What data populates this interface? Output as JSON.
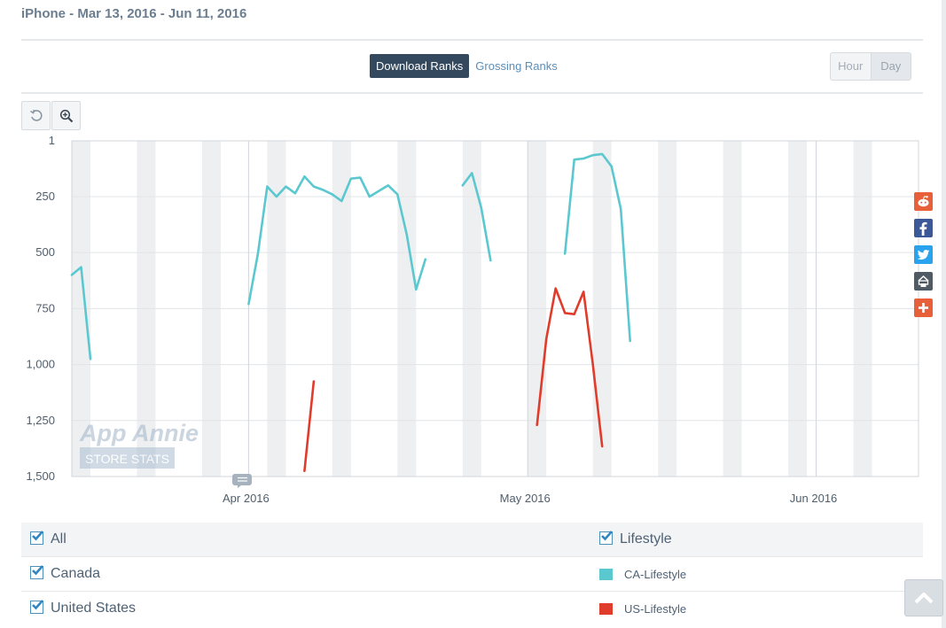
{
  "header": {
    "title": "iPhone - Mar 13, 2016 - Jun 11, 2016"
  },
  "tabs": {
    "download_ranks": "Download Ranks",
    "grossing_ranks": "Grossing Ranks"
  },
  "granularity": {
    "hour": "Hour",
    "day": "Day"
  },
  "toolbar": {
    "reset_icon": "reset-zoom-icon",
    "zoom_icon": "zoom-in-icon"
  },
  "watermark": {
    "line1": "App Annie",
    "line2": "STORE STATS"
  },
  "chart_data": {
    "type": "line",
    "x_unit": "days since Mar 13, 2016",
    "x_range": [
      0,
      91
    ],
    "ylim": [
      1,
      1500
    ],
    "y_reversed": true,
    "yticks": [
      1,
      250,
      500,
      750,
      1000,
      1250,
      1500
    ],
    "ytick_labels": [
      "1",
      "250",
      "500",
      "750",
      "1,000",
      "1,250",
      "1,500"
    ],
    "xtick_labels": [
      {
        "label": "Apr 2016",
        "day": 19
      },
      {
        "label": "May 2016",
        "day": 49
      },
      {
        "label": "Jun 2016",
        "day": 80
      }
    ],
    "grid": true,
    "series": [
      {
        "name": "CA-Lifestyle",
        "color": "#5bc8d0",
        "segments": [
          [
            [
              0,
              600
            ],
            [
              1,
              565
            ],
            [
              2,
              975
            ]
          ],
          [
            [
              19,
              730
            ],
            [
              20,
              505
            ],
            [
              21,
              205
            ],
            [
              22,
              250
            ],
            [
              23,
              205
            ],
            [
              24,
              235
            ],
            [
              25,
              160
            ],
            [
              26,
              205
            ],
            [
              27,
              220
            ],
            [
              28,
              240
            ],
            [
              29,
              270
            ],
            [
              30,
              170
            ],
            [
              31,
              165
            ],
            [
              32,
              250
            ],
            [
              33,
              225
            ],
            [
              34,
              200
            ],
            [
              35,
              240
            ],
            [
              36,
              420
            ],
            [
              37,
              665
            ],
            [
              38,
              530
            ]
          ],
          [
            [
              42,
              200
            ],
            [
              43,
              145
            ],
            [
              44,
              300
            ],
            [
              45,
              535
            ]
          ],
          [
            [
              53,
              505
            ],
            [
              54,
              85
            ],
            [
              55,
              80
            ],
            [
              56,
              65
            ],
            [
              57,
              60
            ],
            [
              58,
              115
            ],
            [
              59,
              305
            ],
            [
              60,
              895
            ]
          ]
        ]
      },
      {
        "name": "US-Lifestyle",
        "color": "#e03c2b",
        "segments": [
          [
            [
              25,
              1475
            ],
            [
              26,
              1075
            ]
          ],
          [
            [
              50,
              1270
            ],
            [
              51,
              885
            ],
            [
              52,
              660
            ],
            [
              53,
              770
            ],
            [
              54,
              775
            ],
            [
              55,
              675
            ],
            [
              56,
              1000
            ],
            [
              57,
              1365
            ]
          ]
        ]
      }
    ]
  },
  "share": {
    "items": [
      "reddit-icon",
      "facebook-icon",
      "twitter-icon",
      "print-icon",
      "more-share-icon"
    ],
    "colors": [
      "#e7603a",
      "#3b5998",
      "#2aa3ef",
      "#505a64",
      "#e7603a"
    ]
  },
  "legend": {
    "rows": [
      {
        "left": "All",
        "right": "Lifestyle",
        "right_color": ""
      },
      {
        "left": "Canada",
        "right": "CA-Lifestyle",
        "right_color": "#5bc8d0"
      },
      {
        "left": "United States",
        "right": "US-Lifestyle",
        "right_color": "#e03c2b"
      }
    ]
  }
}
